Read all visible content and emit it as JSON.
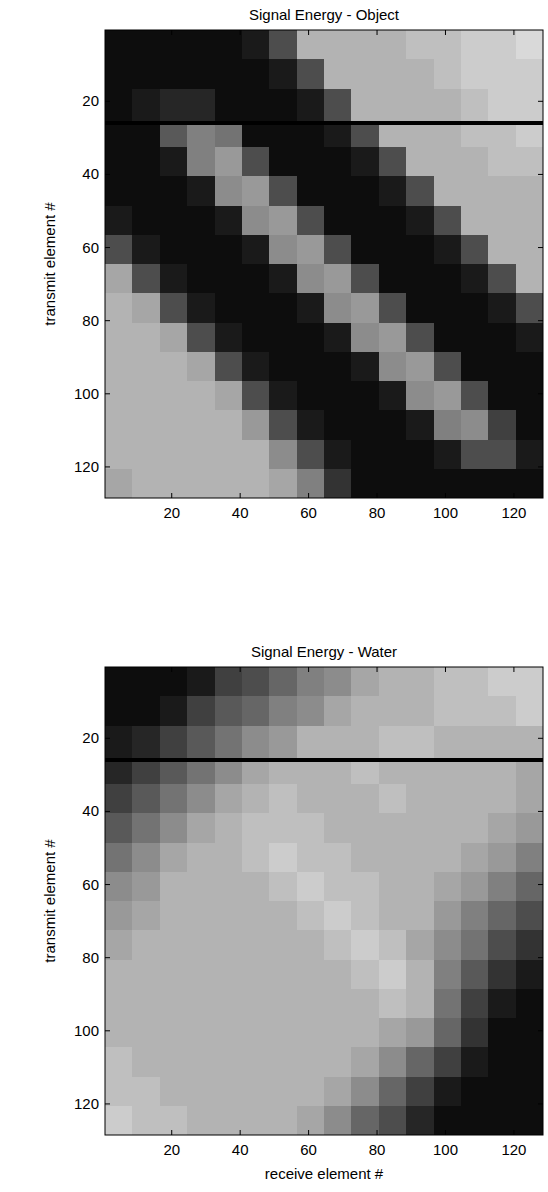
{
  "chart_data": [
    {
      "type": "heatmap",
      "title": "Signal Energy - Object",
      "y_label": "transmit element #",
      "xlim": [
        0.5,
        128.5
      ],
      "ylim": [
        0.5,
        128.5
      ],
      "xticks": [
        20,
        40,
        60,
        80,
        100,
        120
      ],
      "yticks": [
        20,
        40,
        60,
        80,
        100,
        120
      ],
      "clim": [
        0,
        1
      ],
      "x_edges": [
        0.5,
        8.5,
        16.5,
        24.5,
        32.5,
        40.5,
        48.5,
        56.5,
        64.5,
        72.5,
        80.5,
        88.5,
        96.5,
        104.5,
        112.5,
        120.5,
        128.5
      ],
      "y_edges": [
        0.5,
        8.5,
        16.5,
        25.5,
        26.5,
        32.5,
        40.5,
        48.5,
        56.5,
        64.5,
        72.5,
        80.5,
        88.5,
        96.5,
        104.5,
        112.5,
        120.5,
        128.5
      ],
      "cells": [
        [
          0.05,
          0.05,
          0.05,
          0.05,
          0.05,
          0.1,
          0.3,
          0.7,
          0.7,
          0.7,
          0.7,
          0.75,
          0.75,
          0.8,
          0.8,
          0.85
        ],
        [
          0.05,
          0.05,
          0.05,
          0.05,
          0.05,
          0.05,
          0.1,
          0.3,
          0.7,
          0.7,
          0.7,
          0.7,
          0.75,
          0.8,
          0.8,
          0.8
        ],
        [
          0.05,
          0.1,
          0.15,
          0.15,
          0.05,
          0.05,
          0.05,
          0.1,
          0.3,
          0.7,
          0.7,
          0.7,
          0.7,
          0.75,
          0.8,
          0.8
        ],
        [
          0,
          0,
          0,
          0,
          0,
          0,
          0,
          0,
          0,
          0,
          0,
          0,
          0,
          0,
          0,
          0
        ],
        [
          0.05,
          0.05,
          0.35,
          0.5,
          0.45,
          0.05,
          0.05,
          0.05,
          0.1,
          0.3,
          0.7,
          0.7,
          0.7,
          0.75,
          0.75,
          0.8
        ],
        [
          0.05,
          0.05,
          0.1,
          0.5,
          0.6,
          0.3,
          0.05,
          0.05,
          0.05,
          0.1,
          0.3,
          0.7,
          0.7,
          0.7,
          0.75,
          0.75
        ],
        [
          0.05,
          0.05,
          0.05,
          0.1,
          0.55,
          0.6,
          0.3,
          0.05,
          0.05,
          0.05,
          0.1,
          0.3,
          0.7,
          0.7,
          0.7,
          0.7
        ],
        [
          0.1,
          0.05,
          0.05,
          0.05,
          0.1,
          0.55,
          0.6,
          0.3,
          0.05,
          0.05,
          0.05,
          0.1,
          0.3,
          0.7,
          0.7,
          0.7
        ],
        [
          0.3,
          0.1,
          0.05,
          0.05,
          0.05,
          0.1,
          0.55,
          0.6,
          0.3,
          0.05,
          0.05,
          0.05,
          0.1,
          0.3,
          0.7,
          0.7
        ],
        [
          0.65,
          0.3,
          0.1,
          0.05,
          0.05,
          0.05,
          0.1,
          0.55,
          0.6,
          0.3,
          0.05,
          0.05,
          0.05,
          0.1,
          0.3,
          0.7
        ],
        [
          0.7,
          0.65,
          0.3,
          0.1,
          0.05,
          0.05,
          0.05,
          0.1,
          0.55,
          0.6,
          0.3,
          0.05,
          0.05,
          0.05,
          0.1,
          0.3
        ],
        [
          0.7,
          0.7,
          0.65,
          0.3,
          0.1,
          0.05,
          0.05,
          0.05,
          0.1,
          0.55,
          0.6,
          0.3,
          0.05,
          0.05,
          0.05,
          0.1
        ],
        [
          0.7,
          0.7,
          0.7,
          0.65,
          0.3,
          0.1,
          0.05,
          0.05,
          0.05,
          0.1,
          0.55,
          0.6,
          0.3,
          0.05,
          0.05,
          0.05
        ],
        [
          0.7,
          0.7,
          0.7,
          0.7,
          0.65,
          0.3,
          0.1,
          0.05,
          0.05,
          0.05,
          0.1,
          0.55,
          0.6,
          0.3,
          0.05,
          0.05
        ],
        [
          0.7,
          0.7,
          0.7,
          0.7,
          0.7,
          0.6,
          0.3,
          0.1,
          0.05,
          0.05,
          0.05,
          0.1,
          0.5,
          0.55,
          0.25,
          0.05
        ],
        [
          0.7,
          0.7,
          0.7,
          0.7,
          0.7,
          0.7,
          0.55,
          0.3,
          0.1,
          0.05,
          0.05,
          0.05,
          0.1,
          0.3,
          0.3,
          0.1
        ],
        [
          0.65,
          0.7,
          0.7,
          0.7,
          0.7,
          0.7,
          0.65,
          0.5,
          0.2,
          0.05,
          0.05,
          0.05,
          0.05,
          0.05,
          0.05,
          0.05
        ]
      ]
    },
    {
      "type": "heatmap",
      "title": "Signal Energy - Water",
      "x_label": "receive element #",
      "y_label": "transmit element #",
      "xlim": [
        0.5,
        128.5
      ],
      "ylim": [
        0.5,
        128.5
      ],
      "xticks": [
        20,
        40,
        60,
        80,
        100,
        120
      ],
      "yticks": [
        20,
        40,
        60,
        80,
        100,
        120
      ],
      "clim": [
        0,
        1
      ],
      "x_edges": [
        0.5,
        8.5,
        16.5,
        24.5,
        32.5,
        40.5,
        48.5,
        56.5,
        64.5,
        72.5,
        80.5,
        88.5,
        96.5,
        104.5,
        112.5,
        120.5,
        128.5
      ],
      "y_edges": [
        0.5,
        8.5,
        16.5,
        25.5,
        26.5,
        32.5,
        40.5,
        48.5,
        56.5,
        64.5,
        72.5,
        80.5,
        88.5,
        96.5,
        104.5,
        112.5,
        120.5,
        128.5
      ],
      "cells": [
        [
          0.05,
          0.05,
          0.05,
          0.1,
          0.25,
          0.3,
          0.4,
          0.5,
          0.55,
          0.65,
          0.7,
          0.7,
          0.75,
          0.75,
          0.8,
          0.8
        ],
        [
          0.05,
          0.05,
          0.1,
          0.25,
          0.35,
          0.4,
          0.5,
          0.55,
          0.65,
          0.7,
          0.7,
          0.7,
          0.75,
          0.75,
          0.75,
          0.8
        ],
        [
          0.1,
          0.15,
          0.25,
          0.35,
          0.45,
          0.55,
          0.6,
          0.7,
          0.7,
          0.7,
          0.75,
          0.75,
          0.7,
          0.7,
          0.7,
          0.7
        ],
        [
          0,
          0,
          0,
          0,
          0,
          0,
          0,
          0,
          0,
          0,
          0,
          0,
          0,
          0,
          0,
          0
        ],
        [
          0.15,
          0.25,
          0.35,
          0.45,
          0.55,
          0.65,
          0.7,
          0.7,
          0.7,
          0.75,
          0.7,
          0.7,
          0.7,
          0.7,
          0.7,
          0.65
        ],
        [
          0.25,
          0.35,
          0.45,
          0.55,
          0.65,
          0.7,
          0.75,
          0.7,
          0.7,
          0.7,
          0.75,
          0.7,
          0.7,
          0.7,
          0.7,
          0.65
        ],
        [
          0.35,
          0.45,
          0.55,
          0.65,
          0.7,
          0.75,
          0.75,
          0.75,
          0.7,
          0.7,
          0.7,
          0.7,
          0.7,
          0.7,
          0.65,
          0.6
        ],
        [
          0.45,
          0.55,
          0.65,
          0.7,
          0.7,
          0.75,
          0.8,
          0.75,
          0.75,
          0.7,
          0.7,
          0.7,
          0.7,
          0.65,
          0.6,
          0.5
        ],
        [
          0.55,
          0.6,
          0.7,
          0.7,
          0.7,
          0.7,
          0.75,
          0.8,
          0.75,
          0.75,
          0.7,
          0.7,
          0.65,
          0.6,
          0.5,
          0.4
        ],
        [
          0.6,
          0.65,
          0.7,
          0.7,
          0.7,
          0.7,
          0.7,
          0.75,
          0.8,
          0.75,
          0.7,
          0.7,
          0.6,
          0.5,
          0.4,
          0.3
        ],
        [
          0.65,
          0.7,
          0.7,
          0.7,
          0.7,
          0.7,
          0.7,
          0.7,
          0.75,
          0.8,
          0.75,
          0.65,
          0.55,
          0.45,
          0.3,
          0.2
        ],
        [
          0.7,
          0.7,
          0.7,
          0.7,
          0.7,
          0.7,
          0.7,
          0.7,
          0.7,
          0.75,
          0.8,
          0.7,
          0.5,
          0.35,
          0.2,
          0.1
        ],
        [
          0.7,
          0.7,
          0.7,
          0.7,
          0.7,
          0.7,
          0.7,
          0.7,
          0.7,
          0.7,
          0.75,
          0.7,
          0.45,
          0.25,
          0.1,
          0.05
        ],
        [
          0.7,
          0.7,
          0.7,
          0.7,
          0.7,
          0.7,
          0.7,
          0.7,
          0.7,
          0.7,
          0.65,
          0.6,
          0.4,
          0.2,
          0.05,
          0.05
        ],
        [
          0.75,
          0.7,
          0.7,
          0.7,
          0.7,
          0.7,
          0.7,
          0.7,
          0.7,
          0.65,
          0.55,
          0.4,
          0.25,
          0.1,
          0.05,
          0.05
        ],
        [
          0.75,
          0.75,
          0.7,
          0.7,
          0.7,
          0.7,
          0.7,
          0.7,
          0.65,
          0.55,
          0.4,
          0.25,
          0.1,
          0.05,
          0.05,
          0.05
        ],
        [
          0.8,
          0.75,
          0.75,
          0.7,
          0.7,
          0.7,
          0.7,
          0.65,
          0.55,
          0.4,
          0.3,
          0.15,
          0.05,
          0.05,
          0.05,
          0.05
        ]
      ]
    }
  ]
}
